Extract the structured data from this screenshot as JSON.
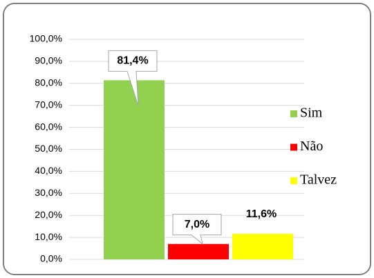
{
  "chart_data": {
    "type": "bar",
    "categories": [
      null
    ],
    "series": [
      {
        "name": "Sim",
        "color": "#92d050",
        "values": [
          81.4
        ],
        "value_labels": [
          "81,4%"
        ]
      },
      {
        "name": "Não",
        "color": "#ff0000",
        "values": [
          7.0
        ],
        "value_labels": [
          "7,0%"
        ]
      },
      {
        "name": "Talvez",
        "color": "#ffff00",
        "values": [
          11.6
        ],
        "value_labels": [
          "11,6%"
        ]
      }
    ],
    "ylim": [
      0,
      100
    ],
    "yticks": [
      {
        "value": 0,
        "label": "0,0%"
      },
      {
        "value": 10,
        "label": "10,0%"
      },
      {
        "value": 20,
        "label": "20,0%"
      },
      {
        "value": 30,
        "label": "30,0%"
      },
      {
        "value": 40,
        "label": "40,0%"
      },
      {
        "value": 50,
        "label": "50,0%"
      },
      {
        "value": 60,
        "label": "60,0%"
      },
      {
        "value": 70,
        "label": "70,0%"
      },
      {
        "value": 80,
        "label": "80,0%"
      },
      {
        "value": 90,
        "label": "90,0%"
      },
      {
        "value": 100,
        "label": "100,0%"
      }
    ],
    "grid": true,
    "legend": "right"
  }
}
